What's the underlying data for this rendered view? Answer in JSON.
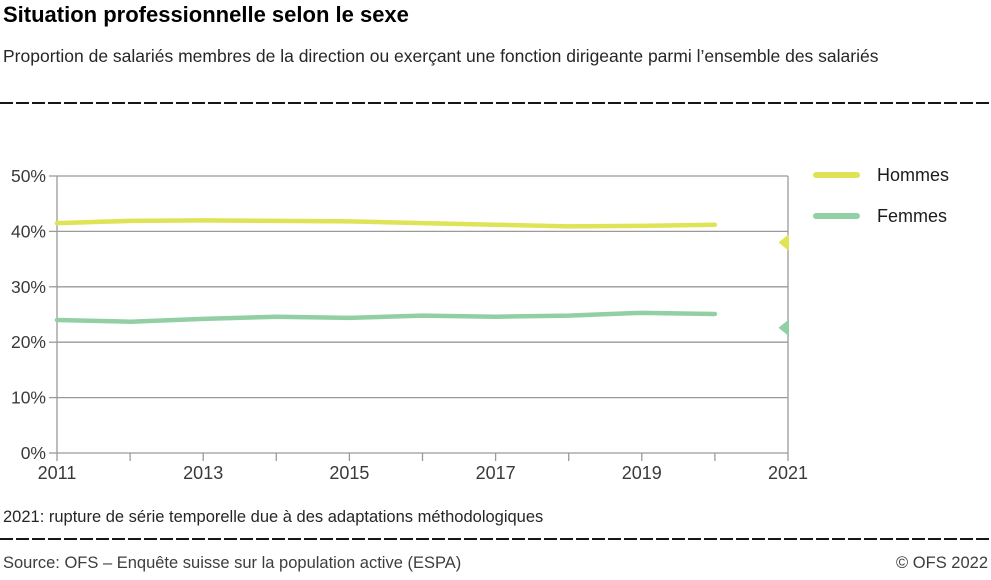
{
  "header": {
    "title": "Situation professionnelle selon le sexe",
    "subtitle": "Proportion de salariés membres de la direction ou exerçant une fonction dirigeante parmi l’ensemble des salariés"
  },
  "note": "2021: rupture de série temporelle due à des adaptations méthodologiques",
  "footer": {
    "source": "Source: OFS – Enquête suisse sur la population active (ESPA)",
    "copyright": "© OFS 2022"
  },
  "colors": {
    "hommes": "#dfe356",
    "femmes": "#93cfa5",
    "grid": "#9a9a9a",
    "axis_text": "#3a3a3a"
  },
  "chart_data": {
    "type": "line",
    "title": "Situation professionnelle selon le sexe",
    "x": [
      2011,
      2012,
      2013,
      2014,
      2015,
      2016,
      2017,
      2018,
      2019,
      2020
    ],
    "series": [
      {
        "name": "Hommes",
        "color_key": "hommes",
        "values": [
          41.5,
          41.9,
          42.0,
          41.9,
          41.8,
          41.5,
          41.2,
          40.9,
          41.0,
          41.2
        ],
        "value_2021_after_break": 38.0
      },
      {
        "name": "Femmes",
        "color_key": "femmes",
        "values": [
          24.0,
          23.7,
          24.2,
          24.6,
          24.4,
          24.8,
          24.6,
          24.8,
          25.3,
          25.1
        ],
        "value_2021_after_break": 22.6
      }
    ],
    "break_year": 2021,
    "break_marker": "left-triangle-at-right-edge",
    "xlim": [
      2011,
      2021
    ],
    "ylim": [
      0,
      50
    ],
    "y_ticks": [
      0,
      10,
      20,
      30,
      40,
      50
    ],
    "y_tick_labels": [
      "0%",
      "10%",
      "20%",
      "30%",
      "40%",
      "50%"
    ],
    "x_minor_tick_years": [
      2011,
      2012,
      2013,
      2014,
      2015,
      2016,
      2017,
      2018,
      2019,
      2020,
      2021
    ],
    "x_tick_labels": [
      "2011",
      "2013",
      "2015",
      "2017",
      "2019",
      "2021"
    ],
    "x_tick_label_years": [
      2011,
      2013,
      2015,
      2017,
      2019,
      2021
    ],
    "grid": true,
    "legend_position": "top-right"
  }
}
